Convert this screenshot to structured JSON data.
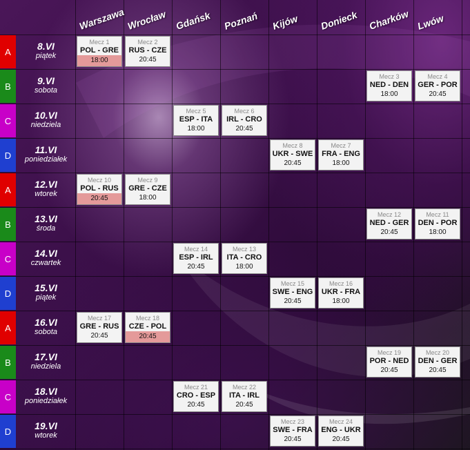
{
  "cities": [
    "Warszawa",
    "Wrocław",
    "Gdańsk",
    "Poznań",
    "Kijów",
    "Donieck",
    "Charków",
    "Lwów"
  ],
  "days": [
    {
      "group": "A",
      "date": "8.VI",
      "weekday": "piątek"
    },
    {
      "group": "B",
      "date": "9.VI",
      "weekday": "sobota"
    },
    {
      "group": "C",
      "date": "10.VI",
      "weekday": "niedziela"
    },
    {
      "group": "D",
      "date": "11.VI",
      "weekday": "poniedziałek"
    },
    {
      "group": "A",
      "date": "12.VI",
      "weekday": "wtorek"
    },
    {
      "group": "B",
      "date": "13.VI",
      "weekday": "środa"
    },
    {
      "group": "C",
      "date": "14.VI",
      "weekday": "czwartek"
    },
    {
      "group": "D",
      "date": "15.VI",
      "weekday": "piątek"
    },
    {
      "group": "A",
      "date": "16.VI",
      "weekday": "sobota"
    },
    {
      "group": "B",
      "date": "17.VI",
      "weekday": "niedziela"
    },
    {
      "group": "C",
      "date": "18.VI",
      "weekday": "poniedziałek"
    },
    {
      "group": "D",
      "date": "19.VI",
      "weekday": "wtorek"
    }
  ],
  "group_colors": {
    "A": "#e00000",
    "B": "#1a8a1a",
    "C": "#c800c8",
    "D": "#1f3fd0"
  },
  "highlight_color": "#e49a9a",
  "matches": [
    {
      "day": 0,
      "city": 0,
      "label": "Mecz 1",
      "teams": "POL - GRE",
      "time": "18:00",
      "poland": true
    },
    {
      "day": 0,
      "city": 1,
      "label": "Mecz 2",
      "teams": "RUS - CZE",
      "time": "20:45",
      "poland": false
    },
    {
      "day": 1,
      "city": 6,
      "label": "Mecz 3",
      "teams": "NED - DEN",
      "time": "18:00",
      "poland": false
    },
    {
      "day": 1,
      "city": 7,
      "label": "Mecz 4",
      "teams": "GER - POR",
      "time": "20:45",
      "poland": false
    },
    {
      "day": 2,
      "city": 2,
      "label": "Mecz 5",
      "teams": "ESP - ITA",
      "time": "18:00",
      "poland": false
    },
    {
      "day": 2,
      "city": 3,
      "label": "Mecz 6",
      "teams": "IRL - CRO",
      "time": "20:45",
      "poland": false
    },
    {
      "day": 3,
      "city": 4,
      "label": "Mecz 8",
      "teams": "UKR - SWE",
      "time": "20:45",
      "poland": false
    },
    {
      "day": 3,
      "city": 5,
      "label": "Mecz 7",
      "teams": "FRA - ENG",
      "time": "18:00",
      "poland": false
    },
    {
      "day": 4,
      "city": 0,
      "label": "Mecz 10",
      "teams": "POL - RUS",
      "time": "20:45",
      "poland": true
    },
    {
      "day": 4,
      "city": 1,
      "label": "Mecz 9",
      "teams": "GRE - CZE",
      "time": "18:00",
      "poland": false
    },
    {
      "day": 5,
      "city": 6,
      "label": "Mecz 12",
      "teams": "NED - GER",
      "time": "20:45",
      "poland": false
    },
    {
      "day": 5,
      "city": 7,
      "label": "Mecz 11",
      "teams": "DEN - POR",
      "time": "18:00",
      "poland": false
    },
    {
      "day": 6,
      "city": 2,
      "label": "Mecz 14",
      "teams": "ESP - IRL",
      "time": "20:45",
      "poland": false
    },
    {
      "day": 6,
      "city": 3,
      "label": "Mecz 13",
      "teams": "ITA - CRO",
      "time": "18:00",
      "poland": false
    },
    {
      "day": 7,
      "city": 4,
      "label": "Mecz 15",
      "teams": "SWE - ENG",
      "time": "20:45",
      "poland": false
    },
    {
      "day": 7,
      "city": 5,
      "label": "Mecz 16",
      "teams": "UKR - FRA",
      "time": "18:00",
      "poland": false
    },
    {
      "day": 8,
      "city": 0,
      "label": "Mecz 17",
      "teams": "GRE - RUS",
      "time": "20:45",
      "poland": false
    },
    {
      "day": 8,
      "city": 1,
      "label": "Mecz 18",
      "teams": "CZE - POL",
      "time": "20:45",
      "poland": true
    },
    {
      "day": 9,
      "city": 6,
      "label": "Mecz 19",
      "teams": "POR - NED",
      "time": "20:45",
      "poland": false
    },
    {
      "day": 9,
      "city": 7,
      "label": "Mecz 20",
      "teams": "DEN - GER",
      "time": "20:45",
      "poland": false
    },
    {
      "day": 10,
      "city": 2,
      "label": "Mecz 21",
      "teams": "CRO - ESP",
      "time": "20:45",
      "poland": false
    },
    {
      "day": 10,
      "city": 3,
      "label": "Mecz 22",
      "teams": "ITA - IRL",
      "time": "20:45",
      "poland": false
    },
    {
      "day": 11,
      "city": 4,
      "label": "Mecz 23",
      "teams": "SWE - FRA",
      "time": "20:45",
      "poland": false
    },
    {
      "day": 11,
      "city": 5,
      "label": "Mecz 24",
      "teams": "ENG - UKR",
      "time": "20:45",
      "poland": false
    }
  ]
}
